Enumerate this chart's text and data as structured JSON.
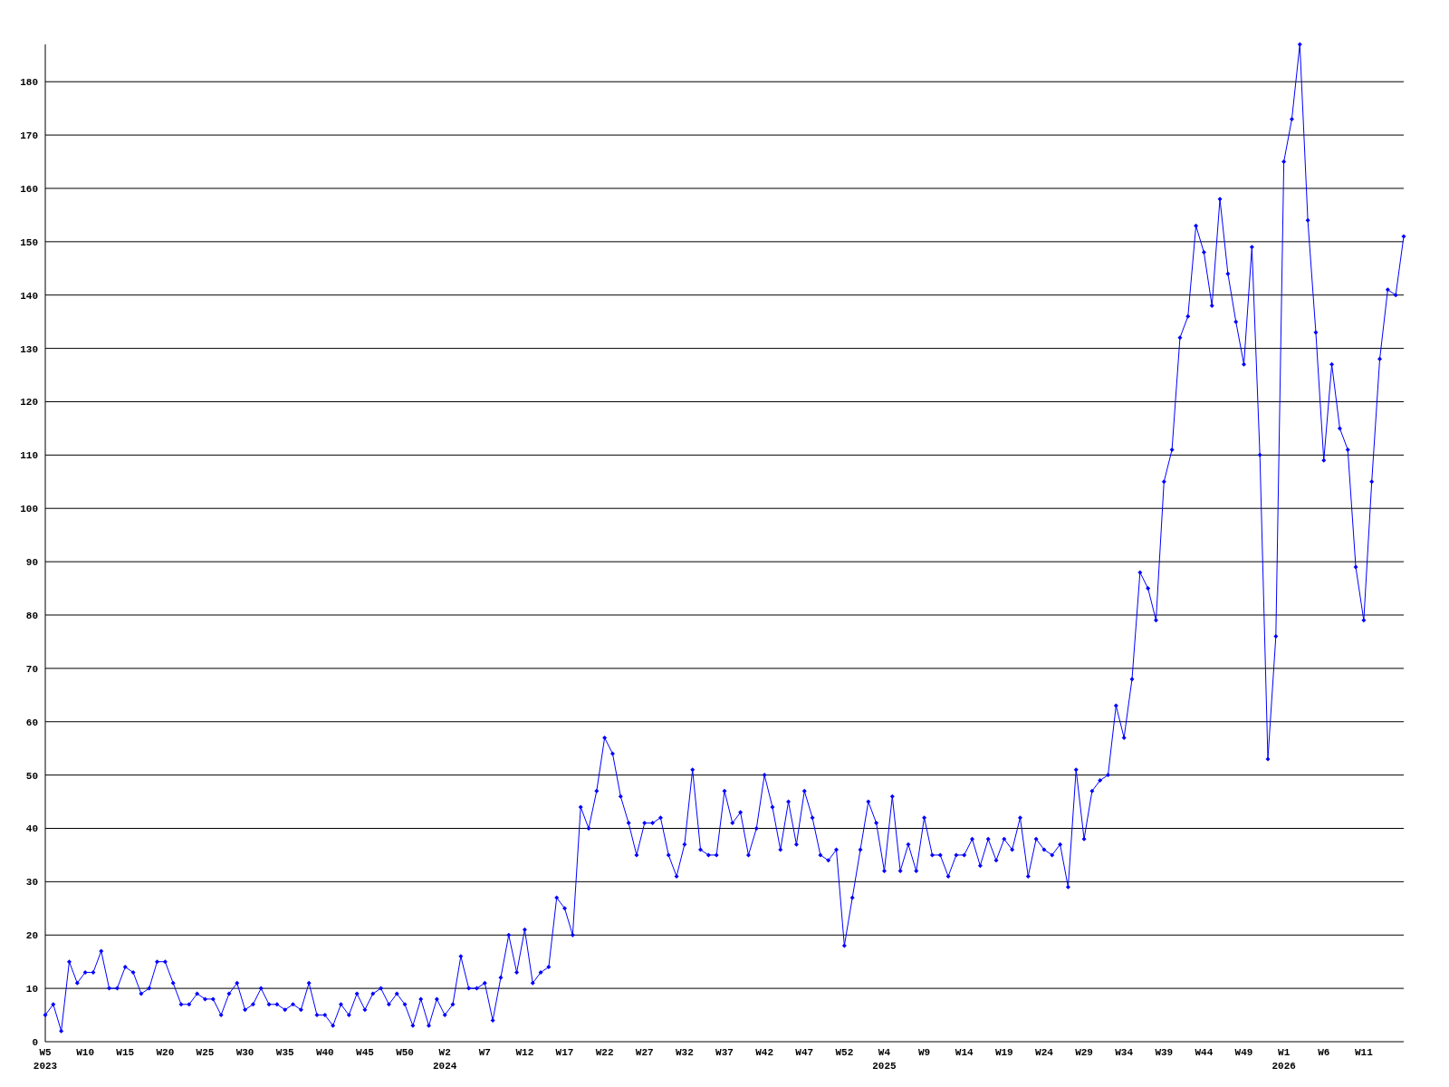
{
  "chart_data": {
    "type": "line",
    "categories": [
      "W5 2023",
      null,
      null,
      null,
      null,
      "W10",
      null,
      null,
      null,
      null,
      "W15",
      null,
      null,
      null,
      null,
      "W20",
      null,
      null,
      null,
      null,
      "W25",
      null,
      null,
      null,
      null,
      "W30",
      null,
      null,
      null,
      null,
      "W35",
      null,
      null,
      null,
      null,
      "W40",
      null,
      null,
      null,
      null,
      "W45",
      null,
      null,
      null,
      null,
      "W50",
      null,
      null,
      null,
      null,
      "W2 2024",
      null,
      null,
      null,
      null,
      "W7",
      null,
      null,
      null,
      null,
      "W12",
      null,
      null,
      null,
      null,
      "W17",
      null,
      null,
      null,
      null,
      "W22",
      null,
      null,
      null,
      null,
      "W27",
      null,
      null,
      null,
      null,
      "W32",
      null,
      null,
      null,
      null,
      "W37",
      null,
      null,
      null,
      null,
      "W42",
      null,
      null,
      null,
      null,
      "W47",
      null,
      null,
      null,
      null,
      "W52",
      null,
      null,
      null,
      null,
      "W4 2025",
      null,
      null,
      null,
      null,
      "W9",
      null,
      null,
      null,
      null,
      "W14",
      null,
      null,
      null,
      null,
      "W19",
      null,
      null,
      null,
      null,
      "W24",
      null,
      null,
      null,
      null,
      "W29",
      null,
      null,
      null,
      null,
      "W34",
      null,
      null,
      null,
      null,
      "W39",
      null,
      null,
      null,
      null,
      "W44",
      null,
      null,
      null,
      null,
      "W49",
      null,
      null,
      null,
      null,
      "W1 2026",
      null,
      null,
      null,
      null,
      "W6",
      null,
      null,
      null,
      null,
      "W11",
      null,
      null,
      null,
      null,
      null
    ],
    "series": [
      {
        "color": "#0000ff",
        "values": [
          5,
          7,
          2,
          15,
          11,
          13,
          13,
          17,
          10,
          10,
          14,
          13,
          9,
          10,
          15,
          15,
          11,
          7,
          7,
          9,
          8,
          8,
          5,
          9,
          11,
          6,
          7,
          10,
          7,
          7,
          6,
          7,
          6,
          11,
          5,
          5,
          3,
          7,
          5,
          9,
          6,
          9,
          10,
          7,
          9,
          7,
          3,
          8,
          3,
          8,
          5,
          7,
          16,
          10,
          10,
          11,
          4,
          12,
          20,
          13,
          21,
          11,
          13,
          14,
          27,
          25,
          20,
          44,
          40,
          47,
          57,
          54,
          46,
          41,
          35,
          41,
          41,
          42,
          35,
          31,
          37,
          51,
          36,
          35,
          35,
          47,
          41,
          43,
          35,
          40,
          50,
          44,
          36,
          45,
          37,
          47,
          42,
          35,
          34,
          36,
          18,
          27,
          36,
          45,
          41,
          32,
          46,
          32,
          37,
          32,
          42,
          35,
          35,
          31,
          35,
          35,
          38,
          33,
          38,
          34,
          38,
          36,
          42,
          31,
          38,
          36,
          35,
          37,
          29,
          51,
          38,
          47,
          49,
          50,
          63,
          57,
          68,
          88,
          85,
          79,
          105,
          111,
          132,
          136,
          153,
          148,
          138,
          158,
          144,
          135,
          127,
          149,
          110,
          53,
          76,
          165,
          173,
          187,
          154,
          133,
          109,
          127,
          115,
          111,
          89,
          79,
          105,
          128,
          141,
          140,
          151
        ]
      }
    ],
    "ylim": [
      0,
      187
    ],
    "yticks": [
      0,
      10,
      20,
      30,
      40,
      50,
      60,
      70,
      80,
      90,
      100,
      110,
      120,
      130,
      140,
      150,
      160,
      170,
      180
    ],
    "grid": "y",
    "marker": "diamond",
    "line_style": "solid"
  }
}
